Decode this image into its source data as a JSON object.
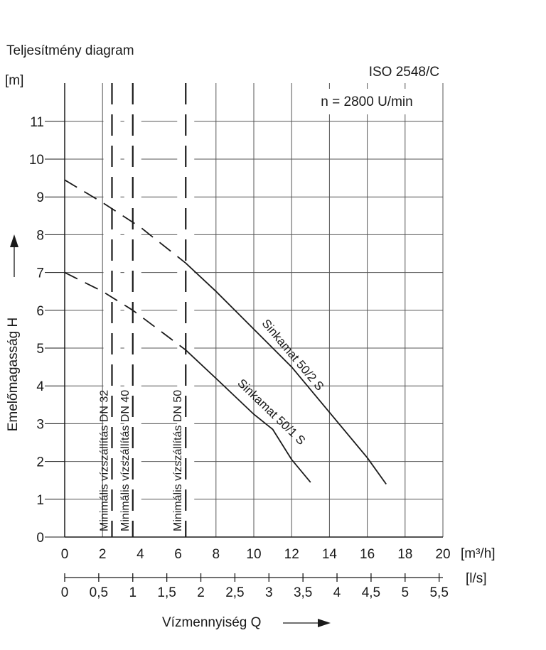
{
  "chart_data": {
    "type": "line",
    "title": "Teljesítmény diagram",
    "standard": "ISO 2548/C",
    "speed_label": "n = 2800 U/min",
    "ylabel": "Emelőmagasság H",
    "y_unit": "[m]",
    "xlabel": "Vízmennyiség Q",
    "x_unit": "[m³/h]",
    "x2_unit": "[l/s]",
    "xlim": [
      0,
      20
    ],
    "ylim": [
      0,
      12
    ],
    "x_ticks": [
      "0",
      "2",
      "4",
      "6",
      "8",
      "10",
      "12",
      "14",
      "16",
      "18",
      "20"
    ],
    "y_ticks": [
      "0",
      "1",
      "2",
      "3",
      "4",
      "5",
      "6",
      "7",
      "8",
      "9",
      "10",
      "11"
    ],
    "x2_ticks": [
      "0",
      "0,5",
      "1",
      "1,5",
      "2",
      "2,5",
      "3",
      "3,5",
      "4",
      "4,5",
      "5",
      "5,5"
    ],
    "x2_per_x": 3.6,
    "grid": true,
    "min_flow_lines": [
      {
        "x": 2.5,
        "label": "Minimális vízszállítás DN 32"
      },
      {
        "x": 3.6,
        "label": "Minimális vízszállítás DN 40"
      },
      {
        "x": 6.4,
        "label": "Minimális vízszállítás DN 50"
      }
    ],
    "series": [
      {
        "name": "Sinkamat 50/2 S",
        "dashed_x": [
          0,
          2,
          4,
          6.4
        ],
        "dashed_y": [
          9.45,
          8.85,
          8.2,
          7.25
        ],
        "solid_x": [
          6.4,
          8,
          9,
          10,
          12,
          14,
          16,
          17
        ],
        "solid_y": [
          7.25,
          6.5,
          6.0,
          5.5,
          4.5,
          3.3,
          2.1,
          1.4
        ]
      },
      {
        "name": "Sinkamat 50/1 S",
        "dashed_x": [
          0,
          2,
          3.6,
          6.4
        ],
        "dashed_y": [
          7.0,
          6.5,
          6.0,
          4.95
        ],
        "solid_x": [
          6.4,
          8,
          10,
          11,
          12,
          13
        ],
        "solid_y": [
          4.95,
          4.2,
          3.25,
          2.85,
          2.05,
          1.45
        ]
      }
    ]
  }
}
